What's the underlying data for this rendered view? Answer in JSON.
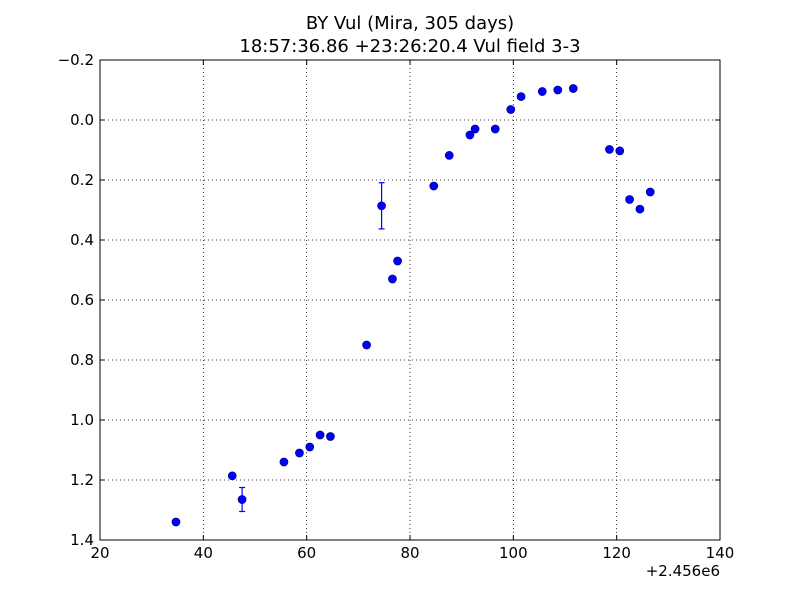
{
  "chart_data": {
    "type": "scatter",
    "title": "BY Vul (Mira, 305 days)",
    "subtitle": "18:57:36.86 +23:26:20.4 Vul field 3-3",
    "xlabel": "",
    "ylabel": "",
    "x_offset_label": "+2.456e6",
    "xlim": [
      20,
      140
    ],
    "ylim": [
      1.4,
      -0.2
    ],
    "y_inverted": true,
    "grid": true,
    "x_ticks": [
      20,
      40,
      60,
      80,
      100,
      120,
      140
    ],
    "x_tick_labels": [
      "20",
      "40",
      "60",
      "80",
      "100",
      "120",
      "140"
    ],
    "y_ticks": [
      -0.2,
      0.0,
      0.2,
      0.4,
      0.6,
      0.8,
      1.0,
      1.2,
      1.4
    ],
    "y_tick_labels": [
      "−0.2",
      "0.0",
      "0.2",
      "0.4",
      "0.6",
      "0.8",
      "1.0",
      "1.2",
      "1.4"
    ],
    "point_color": "#0000ff",
    "points": [
      {
        "x": 34.7,
        "y": 1.34
      },
      {
        "x": 45.6,
        "y": 1.186
      },
      {
        "x": 47.5,
        "y": 1.265,
        "err": 0.04
      },
      {
        "x": 55.6,
        "y": 1.14
      },
      {
        "x": 58.6,
        "y": 1.11
      },
      {
        "x": 60.6,
        "y": 1.09
      },
      {
        "x": 62.6,
        "y": 1.05
      },
      {
        "x": 64.6,
        "y": 1.055
      },
      {
        "x": 71.6,
        "y": 0.75
      },
      {
        "x": 74.5,
        "y": 0.286,
        "err": 0.077
      },
      {
        "x": 76.6,
        "y": 0.53
      },
      {
        "x": 77.6,
        "y": 0.47
      },
      {
        "x": 84.6,
        "y": 0.22
      },
      {
        "x": 87.6,
        "y": 0.118
      },
      {
        "x": 91.6,
        "y": 0.05
      },
      {
        "x": 92.6,
        "y": 0.03
      },
      {
        "x": 96.5,
        "y": 0.03
      },
      {
        "x": 99.5,
        "y": -0.035
      },
      {
        "x": 101.5,
        "y": -0.078
      },
      {
        "x": 105.6,
        "y": -0.095
      },
      {
        "x": 108.6,
        "y": -0.1
      },
      {
        "x": 111.6,
        "y": -0.105
      },
      {
        "x": 118.6,
        "y": 0.098
      },
      {
        "x": 120.6,
        "y": 0.103
      },
      {
        "x": 122.5,
        "y": 0.265
      },
      {
        "x": 124.5,
        "y": 0.297
      },
      {
        "x": 126.5,
        "y": 0.24
      }
    ]
  }
}
